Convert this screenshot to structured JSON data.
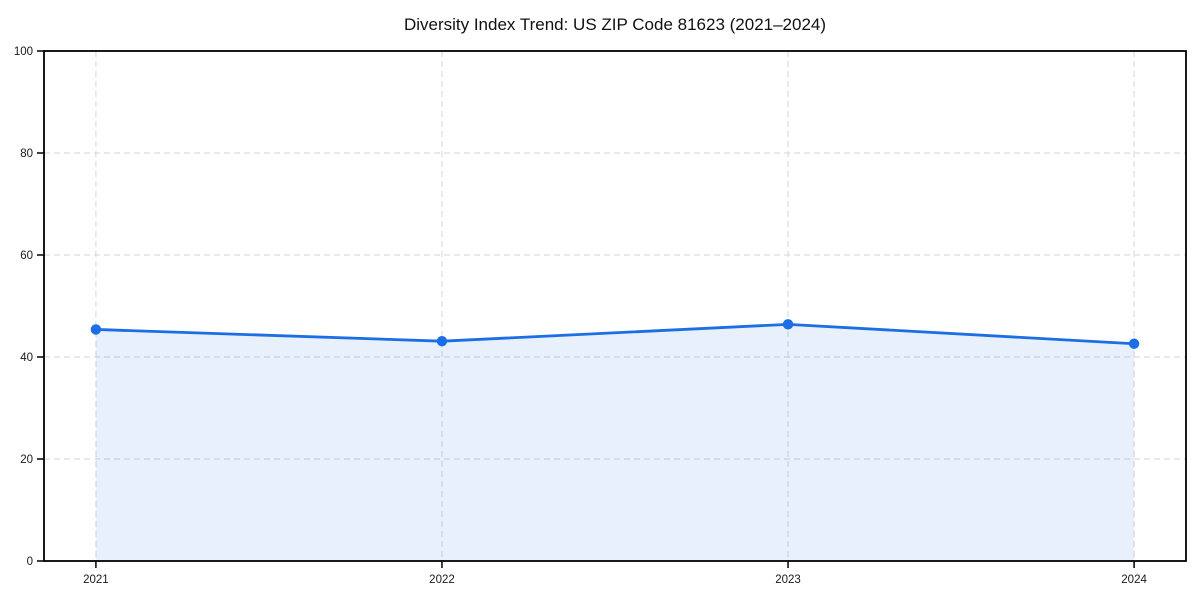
{
  "chart_data": {
    "type": "area",
    "title": "Diversity Index Trend: US ZIP Code 81623 (2021–2024)",
    "series_name": "Diversity Index",
    "categories": [
      "2021",
      "2022",
      "2023",
      "2024"
    ],
    "x": [
      2021,
      2022,
      2023,
      2024
    ],
    "values": [
      45.4,
      43.1,
      46.4,
      42.6
    ],
    "xlabel": "",
    "ylabel": "",
    "xlim": [
      2020.85,
      2024.15
    ],
    "ylim": [
      0,
      100
    ],
    "yticks": [
      0,
      20,
      40,
      60,
      80,
      100
    ],
    "grid": true,
    "grid_style": "dashed",
    "legend_position": "none",
    "colors": {
      "line": "#1b6ee3",
      "marker": "#1b6ee3",
      "fill": "rgba(27,110,227,0.10)",
      "grid": "#dcdcdc",
      "axis": "#000000",
      "tick_label": "#1a1a1a",
      "title": "#111111",
      "background": "#ffffff"
    }
  }
}
